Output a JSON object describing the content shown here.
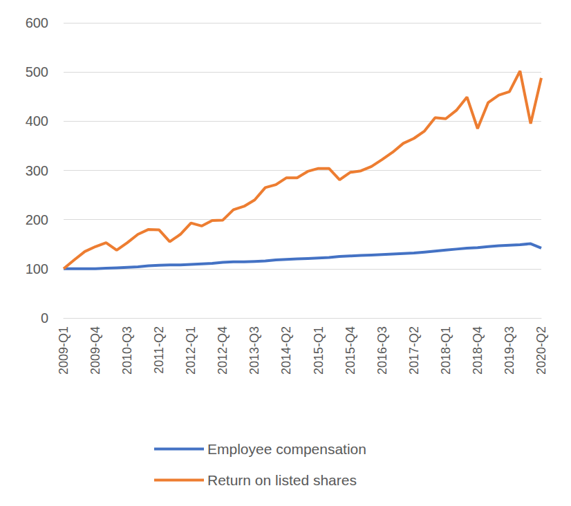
{
  "chart_data": {
    "type": "line",
    "categories": [
      "2009-Q1",
      null,
      null,
      "2009-Q4",
      null,
      null,
      "2010-Q3",
      null,
      null,
      "2011-Q2",
      null,
      null,
      "2012-Q1",
      null,
      null,
      "2012-Q4",
      null,
      null,
      "2013-Q3",
      null,
      null,
      "2014-Q2",
      null,
      null,
      "2015-Q1",
      null,
      null,
      "2015-Q4",
      null,
      null,
      "2016-Q3",
      null,
      null,
      "2017-Q2",
      null,
      null,
      "2018-Q1",
      null,
      null,
      "2018-Q4",
      null,
      null,
      "2019-Q3",
      null,
      null,
      "2020-Q2"
    ],
    "series": [
      {
        "name": "Employee compensation",
        "color": "#4472C4",
        "values": [
          100,
          100,
          100,
          100,
          101,
          102,
          103,
          104,
          106,
          107,
          108,
          108,
          109,
          110,
          111,
          113,
          114,
          114,
          115,
          116,
          118,
          119,
          120,
          121,
          122,
          123,
          125,
          126,
          127,
          128,
          129,
          130,
          131,
          132,
          134,
          136,
          138,
          140,
          142,
          143,
          145,
          147,
          148,
          149,
          151,
          142
        ]
      },
      {
        "name": "Return on listed shares",
        "color": "#ED7D31",
        "values": [
          100,
          118,
          135,
          145,
          153,
          138,
          153,
          170,
          180,
          179,
          155,
          170,
          193,
          187,
          198,
          199,
          220,
          227,
          240,
          265,
          271,
          285,
          285,
          298,
          304,
          304,
          281,
          296,
          299,
          308,
          322,
          337,
          355,
          365,
          380,
          407,
          405,
          422,
          449,
          385,
          438,
          453,
          460,
          502,
          395,
          488
        ]
      }
    ],
    "ylim": [
      0,
      600
    ],
    "yticks": [
      0,
      100,
      200,
      300,
      400,
      500,
      600
    ],
    "grid": true,
    "legend": "bottom",
    "marker": "none"
  }
}
